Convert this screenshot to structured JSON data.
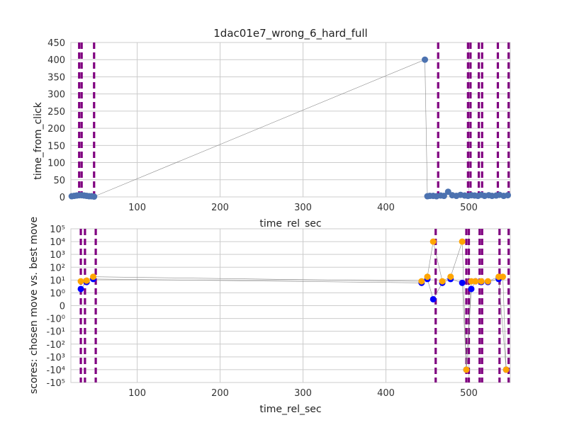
{
  "chart_data": [
    {
      "type": "scatter",
      "title": "1dac01e7_wrong_6_hard_full",
      "xlabel": "time_rel_sec",
      "ylabel": "time_from_click",
      "xlim": [
        20,
        550
      ],
      "ylim": [
        0,
        450
      ],
      "xticks": [
        100,
        200,
        300,
        400,
        500
      ],
      "yticks": [
        0,
        50,
        100,
        150,
        200,
        250,
        300,
        350,
        400,
        450
      ],
      "grid": true,
      "vlines": [
        30,
        33,
        48,
        463,
        499,
        502,
        512,
        516,
        535,
        548
      ],
      "vline_color": "#800080",
      "series": [
        {
          "color": "#4c72b0",
          "points": [
            [
              21,
              2
            ],
            [
              24,
              3
            ],
            [
              27,
              4
            ],
            [
              30,
              5
            ],
            [
              33,
              5
            ],
            [
              36,
              4
            ],
            [
              39,
              3
            ],
            [
              42,
              2
            ],
            [
              45,
              2
            ],
            [
              48,
              1
            ],
            [
              447,
              400
            ],
            [
              450,
              2
            ],
            [
              453,
              3
            ],
            [
              457,
              3
            ],
            [
              461,
              2
            ],
            [
              466,
              4
            ],
            [
              470,
              3
            ],
            [
              475,
              15
            ],
            [
              480,
              5
            ],
            [
              485,
              3
            ],
            [
              490,
              6
            ],
            [
              495,
              4
            ],
            [
              499,
              3
            ],
            [
              503,
              5
            ],
            [
              507,
              4
            ],
            [
              511,
              3
            ],
            [
              515,
              6
            ],
            [
              519,
              3
            ],
            [
              524,
              5
            ],
            [
              528,
              3
            ],
            [
              533,
              4
            ],
            [
              537,
              6
            ],
            [
              542,
              3
            ],
            [
              547,
              5
            ]
          ]
        }
      ]
    },
    {
      "type": "scatter",
      "title": "",
      "xlabel": "time_rel_sec",
      "ylabel": "scores: chosen move vs. best move",
      "xlim": [
        20,
        550
      ],
      "yscale": "symlog",
      "xticks": [
        100,
        200,
        300,
        400,
        500
      ],
      "ytick_labels": [
        "10⁵",
        "10⁴",
        "10³",
        "10²",
        "10¹",
        "10⁰",
        "0",
        "-10⁰",
        "-10¹",
        "-10²",
        "-10³",
        "-10⁴",
        "-10⁵"
      ],
      "grid": true,
      "vlines": [
        32,
        37,
        50,
        460,
        497,
        500,
        513,
        516,
        537,
        548
      ],
      "vline_color": "#800080",
      "series": [
        {
          "color": "#0000ff",
          "points": [
            [
              32,
              2
            ],
            [
              39,
              7
            ],
            [
              47,
              12
            ],
            [
              443,
              6
            ],
            [
              450,
              12
            ],
            [
              457,
              0.5
            ],
            [
              468,
              6
            ],
            [
              478,
              12
            ],
            [
              492,
              6
            ],
            [
              497,
              -10000
            ],
            [
              503,
              2
            ],
            [
              508,
              8
            ],
            [
              515,
              7
            ],
            [
              523,
              7
            ],
            [
              536,
              12
            ],
            [
              545,
              -10000
            ]
          ]
        },
        {
          "color": "#ffa500",
          "points": [
            [
              32,
              8
            ],
            [
              39,
              9
            ],
            [
              47,
              18
            ],
            [
              443,
              8
            ],
            [
              450,
              18
            ],
            [
              457,
              10000
            ],
            [
              468,
              8
            ],
            [
              478,
              18
            ],
            [
              492,
              10000
            ],
            [
              497,
              -10000
            ],
            [
              503,
              8
            ],
            [
              508,
              8
            ],
            [
              515,
              8
            ],
            [
              523,
              8
            ],
            [
              536,
              18
            ],
            [
              541,
              18
            ],
            [
              545,
              -10000
            ]
          ]
        }
      ]
    }
  ]
}
